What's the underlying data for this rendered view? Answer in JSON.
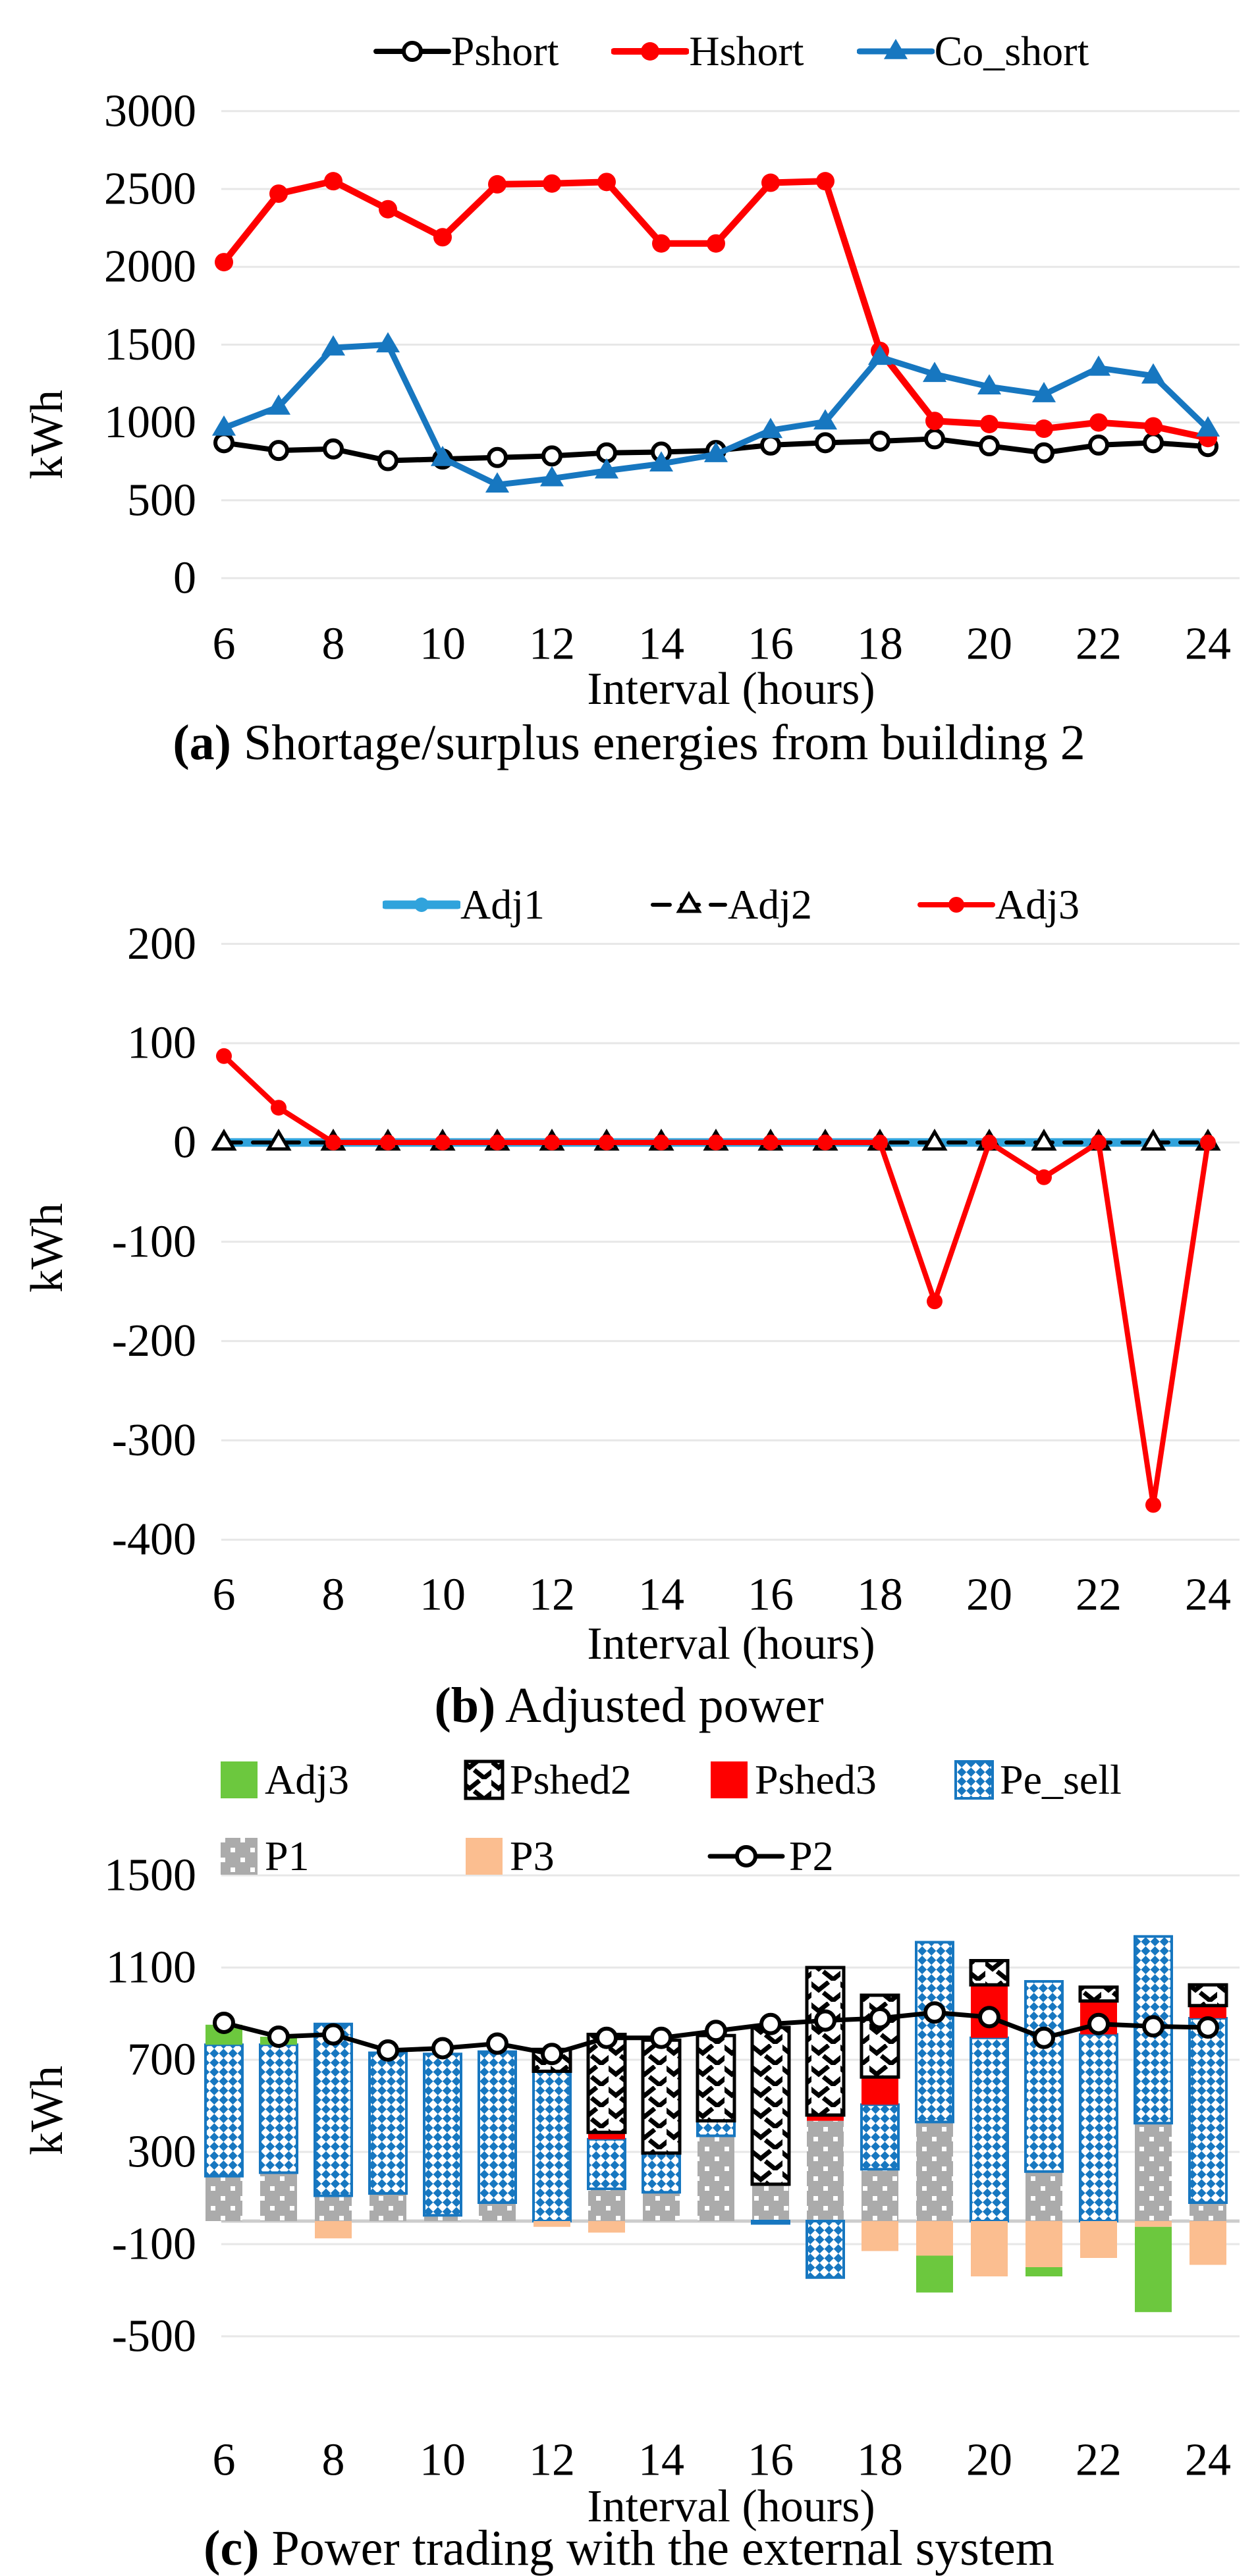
{
  "figure": {
    "background": "#FFFFFF",
    "unit": "kWh"
  },
  "colors": {
    "red": "#FE0000",
    "blue": "#1777C0",
    "light_blue": "#30A3DC",
    "green": "#6CC83E",
    "peach": "#FBBE90",
    "gray_bar": "#ABABAB",
    "grid": "#E7E7E7",
    "baseline": "#CCCCCC",
    "black": "#000000"
  },
  "chart_data": [
    {
      "id": "a",
      "type": "line",
      "caption": {
        "bold": "(a)",
        "text": " Shortage/surplus energies from building 2"
      },
      "xlabel": "Interval (hours)",
      "ylabel": "kWh",
      "x": [
        6,
        7,
        8,
        9,
        10,
        11,
        12,
        13,
        14,
        15,
        16,
        17,
        18,
        19,
        20,
        21,
        22,
        23,
        24
      ],
      "xticks": [
        6,
        8,
        10,
        12,
        14,
        16,
        18,
        20,
        22,
        24
      ],
      "yticks": [
        3000,
        2500,
        2000,
        1500,
        1000,
        500,
        0
      ],
      "ylim": [
        0,
        3000
      ],
      "grid": true,
      "legend_position": "top",
      "series": [
        {
          "name": "Pshort",
          "type": "line",
          "color": "#000000",
          "marker": "open-circle",
          "values": [
            870,
            820,
            830,
            755,
            765,
            775,
            785,
            805,
            810,
            820,
            855,
            870,
            880,
            895,
            850,
            805,
            855,
            870,
            845
          ]
        },
        {
          "name": "Hshort",
          "type": "line",
          "color": "#FE0000",
          "marker": "dot",
          "values": [
            2030,
            2470,
            2550,
            2370,
            2190,
            2530,
            2535,
            2545,
            2150,
            2150,
            2540,
            2550,
            1460,
            1010,
            990,
            960,
            1000,
            975,
            900
          ]
        },
        {
          "name": "Co_short",
          "type": "line",
          "color": "#1777C0",
          "marker": "triangle",
          "values": [
            965,
            1100,
            1480,
            1500,
            770,
            600,
            640,
            690,
            735,
            795,
            950,
            1005,
            1420,
            1310,
            1230,
            1180,
            1350,
            1300,
            960
          ]
        }
      ]
    },
    {
      "id": "b",
      "type": "line",
      "caption": {
        "bold": "(b)",
        "text": " Adjusted power"
      },
      "xlabel": "Interval (hours)",
      "ylabel": "kWh",
      "x": [
        6,
        7,
        8,
        9,
        10,
        11,
        12,
        13,
        14,
        15,
        16,
        17,
        18,
        19,
        20,
        21,
        22,
        23,
        24
      ],
      "xticks": [
        6,
        8,
        10,
        12,
        14,
        16,
        18,
        20,
        22,
        24
      ],
      "yticks": [
        200,
        100,
        0,
        -100,
        -200,
        -300,
        -400
      ],
      "ylim": [
        -400,
        200
      ],
      "grid": true,
      "legend_position": "top",
      "series": [
        {
          "name": "Adj1",
          "type": "line",
          "color": "#30A3DC",
          "marker": "dot",
          "values": [
            0,
            0,
            0,
            0,
            0,
            0,
            0,
            0,
            0,
            0,
            0,
            0,
            0,
            0,
            0,
            0,
            0,
            0,
            0
          ]
        },
        {
          "name": "Adj2",
          "type": "line",
          "color": "#000000",
          "marker": "open-triangle",
          "dashed": true,
          "values": [
            0,
            0,
            0,
            0,
            0,
            0,
            0,
            0,
            0,
            0,
            0,
            0,
            0,
            0,
            0,
            0,
            0,
            0,
            0
          ]
        },
        {
          "name": "Adj3",
          "type": "line",
          "color": "#FE0000",
          "marker": "dot",
          "values": [
            87,
            35,
            0,
            0,
            0,
            0,
            0,
            0,
            0,
            0,
            0,
            0,
            0,
            -160,
            0,
            -35,
            0,
            -365,
            0
          ]
        }
      ]
    },
    {
      "id": "c",
      "type": "bar-line",
      "caption": {
        "bold": "(c)",
        "text": " Power trading with the external system"
      },
      "xlabel": "Interval (hours)",
      "ylabel": "kWh",
      "x": [
        6,
        7,
        8,
        9,
        10,
        11,
        12,
        13,
        14,
        15,
        16,
        17,
        18,
        19,
        20,
        21,
        22,
        23,
        24
      ],
      "xticks": [
        6,
        8,
        10,
        12,
        14,
        16,
        18,
        20,
        22,
        24
      ],
      "yticks": [
        1500,
        1100,
        700,
        300,
        -100,
        -500
      ],
      "ylim": [
        -500,
        1500
      ],
      "grid": true,
      "stack_pos": [
        "P1",
        "Pe_sell",
        "Pshed3",
        "Pshed2",
        "Adj3"
      ],
      "stack_neg": [
        "Pe_sell",
        "P3",
        "Adj3"
      ],
      "legend_rows": [
        [
          "Adj3",
          "Pshed2",
          "Pshed3",
          "Pe_sell"
        ],
        [
          "P1",
          "P3",
          "P2"
        ]
      ],
      "series": [
        {
          "name": "Adj3",
          "type": "bar",
          "style": "green",
          "values": [
            87,
            35,
            0,
            0,
            0,
            0,
            0,
            0,
            0,
            0,
            0,
            0,
            0,
            -160,
            0,
            -40,
            0,
            -370,
            0
          ]
        },
        {
          "name": "Pshed2",
          "type": "bar",
          "style": "hatch",
          "values": [
            0,
            0,
            0,
            0,
            0,
            0,
            95,
            425,
            490,
            370,
            680,
            640,
            355,
            0,
            105,
            0,
            60,
            0,
            90
          ]
        },
        {
          "name": "Pshed3",
          "type": "bar",
          "style": "red",
          "values": [
            0,
            0,
            0,
            0,
            0,
            0,
            0,
            30,
            0,
            0,
            0,
            25,
            120,
            0,
            230,
            0,
            145,
            0,
            55
          ]
        },
        {
          "name": "Pe_sell",
          "type": "bar",
          "style": "pe",
          "values": [
            570,
            555,
            745,
            610,
            700,
            655,
            650,
            215,
            170,
            65,
            -10,
            -245,
            280,
            780,
            795,
            825,
            810,
            810,
            800
          ]
        },
        {
          "name": "P1",
          "type": "bar",
          "style": "p1",
          "values": [
            195,
            210,
            110,
            120,
            25,
            80,
            0,
            140,
            125,
            370,
            160,
            435,
            225,
            430,
            0,
            215,
            0,
            425,
            80
          ]
        },
        {
          "name": "P3",
          "type": "bar",
          "style": "peach",
          "values": [
            0,
            0,
            -75,
            0,
            0,
            0,
            -25,
            -50,
            0,
            0,
            0,
            0,
            -130,
            -150,
            -240,
            -200,
            -160,
            -25,
            -190
          ]
        },
        {
          "name": "P2",
          "type": "line",
          "color": "#000000",
          "marker": "open-circle",
          "values": [
            860,
            800,
            810,
            740,
            750,
            770,
            725,
            795,
            795,
            825,
            855,
            870,
            880,
            905,
            885,
            795,
            855,
            845,
            840
          ]
        }
      ]
    }
  ]
}
